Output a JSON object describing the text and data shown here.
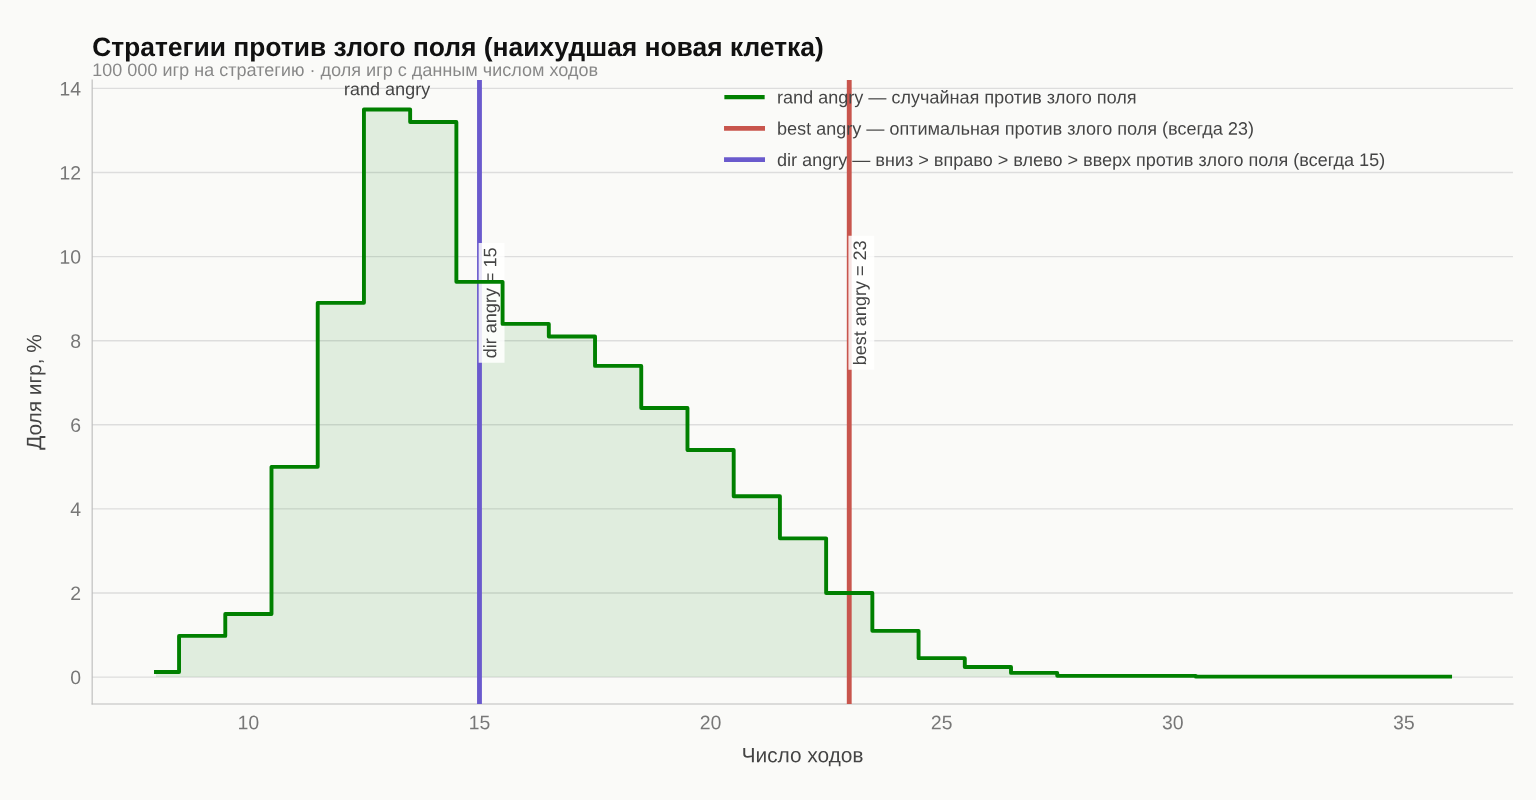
{
  "chart_data": {
    "type": "step",
    "title": "Стратегии против злого поля (наихудшая новая клетка)",
    "subtitle": "100 000 игр на стратегию · доля игр с данным числом ходов",
    "xlabel": "Число ходов",
    "ylabel": "Доля игр, %",
    "x": [
      8,
      9,
      10,
      11,
      12,
      13,
      14,
      15,
      16,
      17,
      18,
      19,
      20,
      21,
      22,
      23,
      24,
      25,
      26,
      27,
      28,
      29,
      30,
      31,
      32,
      33,
      34,
      35,
      36
    ],
    "series": [
      {
        "name": "rand angry — случайная против злого поля",
        "color": "#008000",
        "values": [
          0.12,
          0.98,
          1.5,
          5.0,
          8.9,
          13.5,
          13.2,
          9.4,
          8.4,
          8.1,
          7.4,
          6.4,
          5.4,
          4.3,
          3.3,
          2.0,
          1.1,
          0.45,
          0.24,
          0.1,
          0.03,
          0.03,
          0.03,
          0.01,
          0.01,
          0.01,
          0.01,
          0.01,
          0.01
        ]
      }
    ],
    "ref_lines": [
      {
        "axis": "x",
        "value": 23,
        "label": "best angry = 23",
        "color": "#c8554d"
      },
      {
        "axis": "x",
        "value": 15,
        "label": "dir angry = 15",
        "color": "#6a5acd"
      }
    ],
    "annotations": [
      {
        "text": "rand angry",
        "x": 13,
        "y": 13.5
      },
      "best angry — оптимальная против злого поля (всегда 23)",
      "dir angry — вниз > вправо > влево > вверх против злого поля (всегда 15)"
    ],
    "xlim": [
      6.62,
      37.36
    ],
    "ylim": [
      -0.64,
      14.2
    ],
    "xticks": [
      10,
      15,
      20,
      25,
      30,
      35
    ],
    "yticks": [
      0,
      2,
      4,
      6,
      8,
      10,
      12,
      14
    ],
    "grid": "y",
    "legend": "top right"
  }
}
